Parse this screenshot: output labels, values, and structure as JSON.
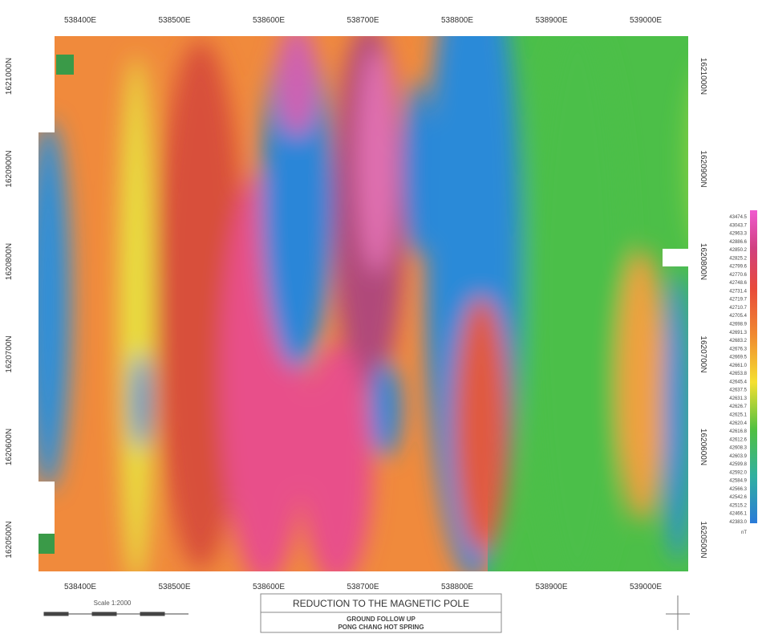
{
  "map": {
    "eastings": [
      "538400E",
      "538500E",
      "538600E",
      "538700E",
      "538800E",
      "538900E",
      "539000E"
    ],
    "northings": [
      "1621000N",
      "1620900N",
      "1620800N",
      "1620700N",
      "1620600N",
      "1620500N"
    ],
    "legend": {
      "values": [
        "43474.5",
        "43043.7",
        "42963.3",
        "42886.6",
        "42850.2",
        "42825.2",
        "42799.6",
        "42770.6",
        "42748.6",
        "42731.4",
        "42719.7",
        "42710.7",
        "42705.4",
        "42698.9",
        "42691.3",
        "42683.2",
        "42676.3",
        "42669.5",
        "42661.0",
        "42653.8",
        "42645.4",
        "42637.5",
        "42631.3",
        "42626.7",
        "42625.1",
        "42620.4",
        "42616.8",
        "42612.6",
        "42608.3",
        "42603.9",
        "42599.8",
        "42592.0",
        "42584.9",
        "42566.3",
        "42542.6",
        "42515.2",
        "42466.1",
        "42383.0"
      ],
      "unit": "nT"
    },
    "scale": "Scale 1:2000",
    "title": "REDUCTION TO THE MAGNETIC POLE",
    "subtitle": [
      "GROUND FOLLOW UP",
      "PONG CHANG HOT SPRING"
    ]
  }
}
